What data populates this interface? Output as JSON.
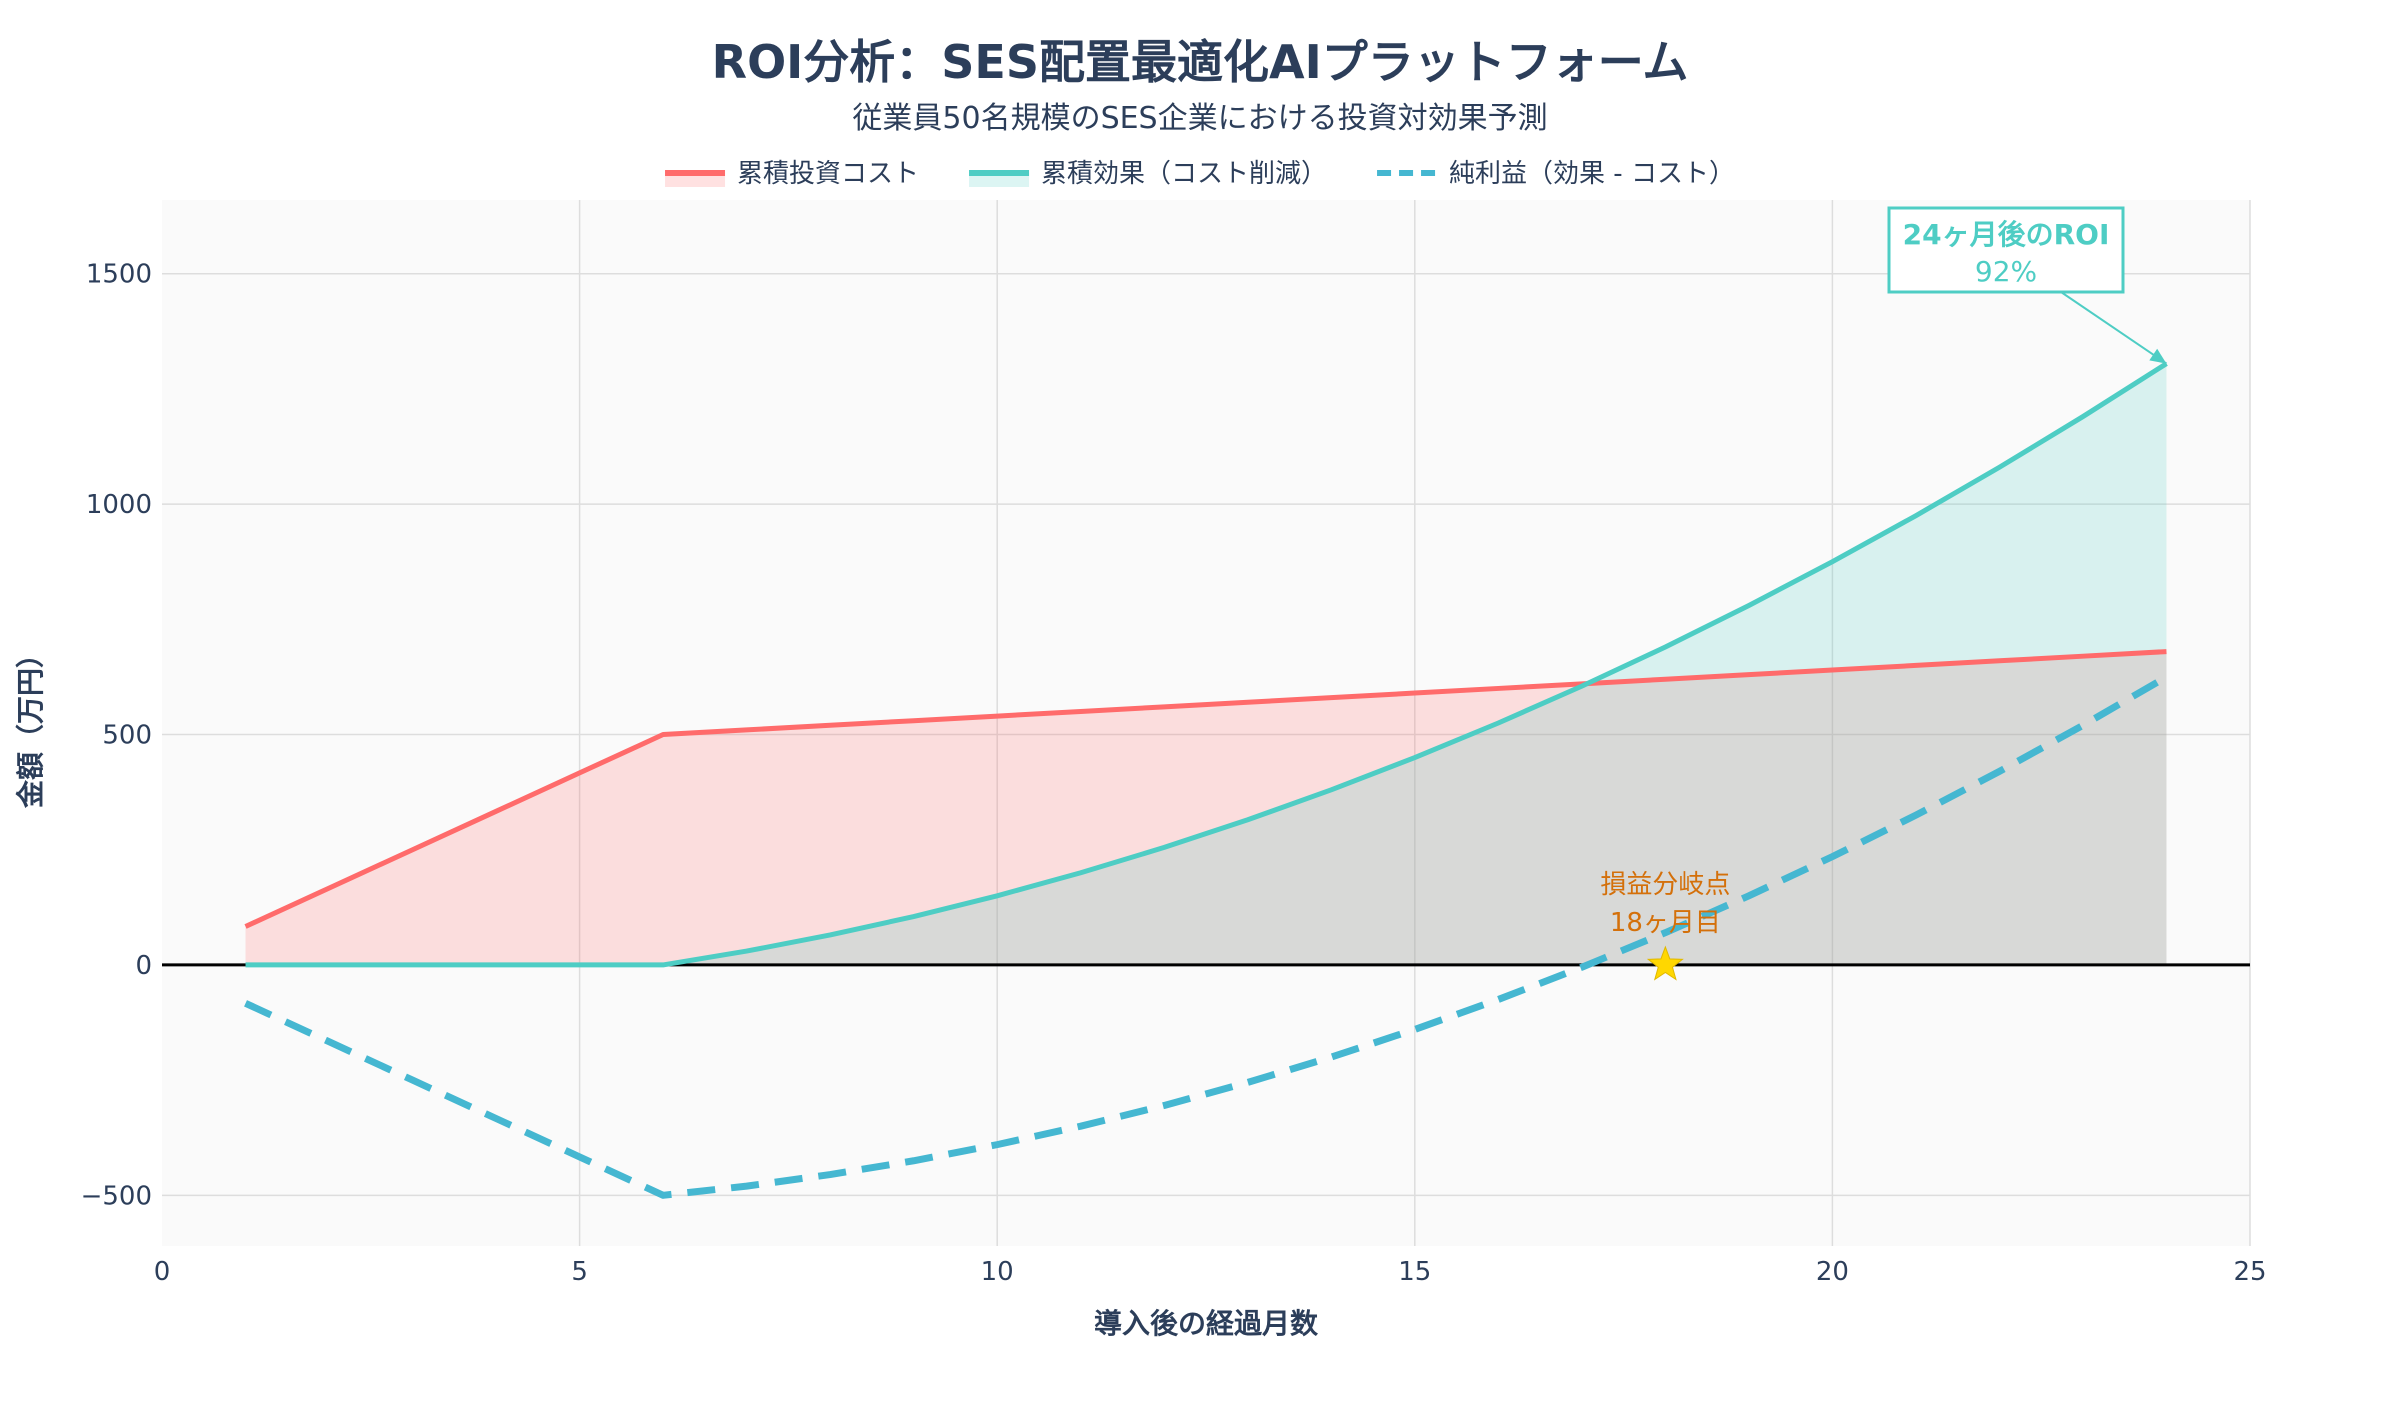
{
  "chart_data": {
    "type": "line",
    "title": "ROI分析：SES配置最適化AIプラットフォーム",
    "subtitle": "従業員50名規模のSES企業における投資対効果予測",
    "xlabel": "導入後の経過月数",
    "ylabel": "金額（万円）",
    "xlim": [
      0,
      25
    ],
    "ylim": [
      -610,
      1660
    ],
    "xticks": [
      0,
      5,
      10,
      15,
      20,
      25
    ],
    "yticks": [
      -500,
      0,
      500,
      1000,
      1500
    ],
    "ytick_labels": [
      "−500",
      "0",
      "500",
      "1000",
      "1500"
    ],
    "grid": true,
    "legend_position": "top-center",
    "x": [
      1,
      2,
      3,
      4,
      5,
      6,
      7,
      8,
      9,
      10,
      11,
      12,
      13,
      14,
      15,
      16,
      17,
      18,
      19,
      20,
      21,
      22,
      23,
      24
    ],
    "series": [
      {
        "name": "累積投資コスト",
        "color": "#FF6B6B",
        "fill": "tozeroy",
        "dash": "solid",
        "values": [
          83.3,
          166.7,
          250,
          333.3,
          416.7,
          500,
          510,
          520,
          530,
          540,
          550,
          560,
          570,
          580,
          590,
          600,
          610,
          620,
          630,
          640,
          650,
          660,
          670,
          680
        ]
      },
      {
        "name": "累積効果（コスト削減）",
        "color": "#4ECDC4",
        "fill": "tozeroy",
        "dash": "solid",
        "values": [
          0,
          0,
          0,
          0,
          0,
          0,
          30,
          65,
          105,
          150,
          200,
          255,
          315,
          380,
          450,
          525,
          605,
          690,
          780,
          875,
          975,
          1080,
          1190,
          1305
        ]
      },
      {
        "name": "純利益（効果 - コスト）",
        "color": "#45B7D1",
        "fill": "none",
        "dash": "dash",
        "values": [
          -83.3,
          -166.7,
          -250,
          -333.3,
          -416.7,
          -500,
          -480,
          -455,
          -425,
          -390,
          -350,
          -305,
          -255,
          -200,
          -140,
          -75,
          -5,
          70,
          150,
          235,
          325,
          420,
          520,
          625
        ]
      }
    ],
    "annotations": [
      {
        "text_line1": "24ヶ月後のROI",
        "text_line2": "92%",
        "x": 24,
        "y": 1305,
        "color": "#4ECDC4"
      },
      {
        "text_line1": "損益分岐点",
        "text_line2": "18ヶ月目",
        "x": 18,
        "y": 0,
        "color": "#D4700A",
        "marker": "star",
        "marker_color": "#FFD700"
      }
    ]
  }
}
